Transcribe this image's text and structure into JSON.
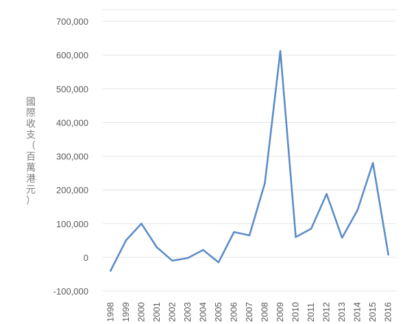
{
  "chart_data": {
    "type": "line",
    "title": "",
    "xlabel": "",
    "ylabel": "國際收支（百萬港元）",
    "x": [
      "1998",
      "1999",
      "2000",
      "2001",
      "2002",
      "2003",
      "2004",
      "2005",
      "2006",
      "2007",
      "2008",
      "2009",
      "2010",
      "2011",
      "2012",
      "2013",
      "2014",
      "2015",
      "2016"
    ],
    "series": [
      {
        "values": [
          -40000,
          50000,
          100000,
          30000,
          -10000,
          -2000,
          22000,
          -15000,
          75000,
          65000,
          220000,
          612000,
          60000,
          85000,
          188000,
          58000,
          140000,
          280000,
          8000
        ],
        "color": "#5b8cc8"
      }
    ],
    "yticks": [
      "700,000",
      "600,000",
      "500,000",
      "400,000",
      "300,000",
      "200,000",
      "100,000",
      "0",
      "-100,000"
    ],
    "ylim": [
      -100000,
      700000
    ],
    "grid": true
  }
}
